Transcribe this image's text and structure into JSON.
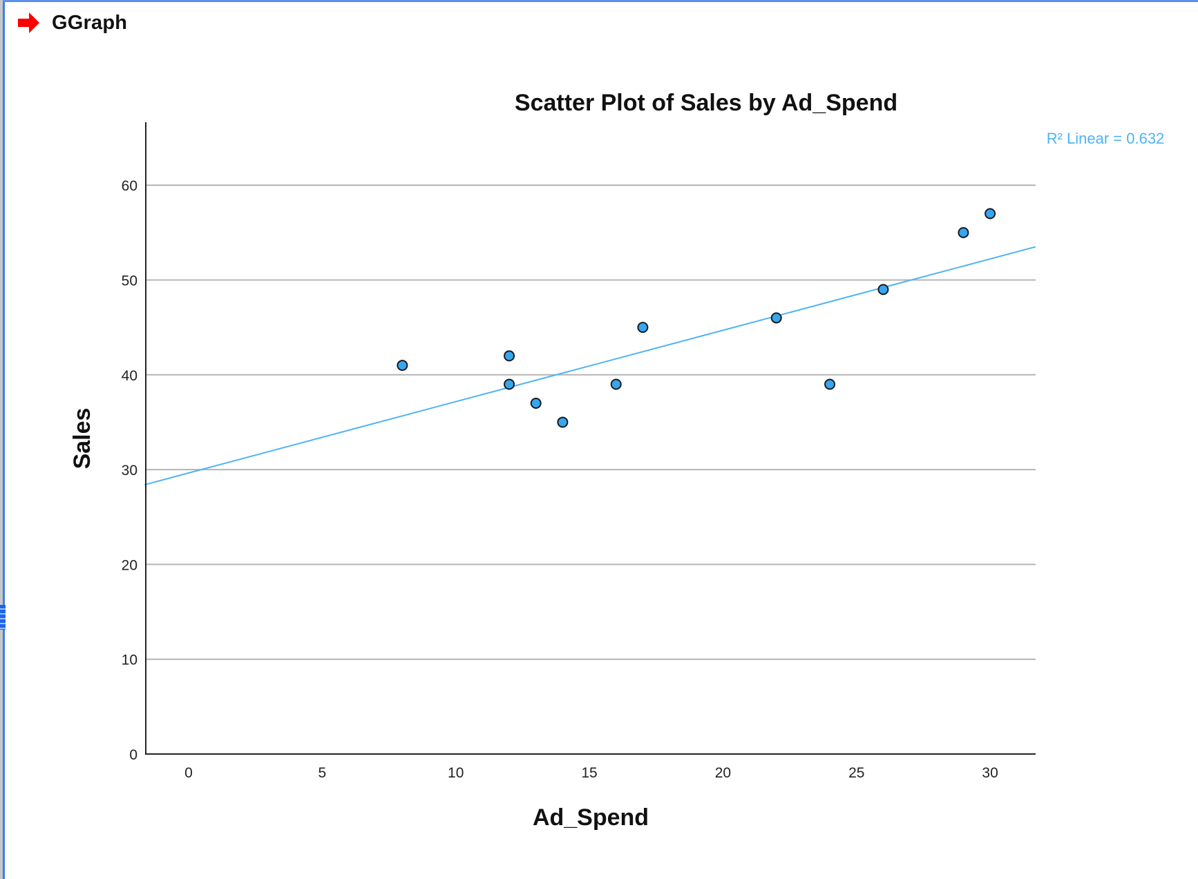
{
  "window": {
    "header_title": "GGraph",
    "header_icon": "red-arrow-right-icon"
  },
  "chart": {
    "title": "Scatter Plot of Sales by Ad_Spend",
    "xlabel": "Ad_Spend",
    "ylabel": "Sales",
    "fit_label": "R² Linear = 0.632",
    "x_ticks": [
      "0",
      "5",
      "10",
      "15",
      "20",
      "25",
      "30"
    ],
    "y_ticks": [
      "0",
      "10",
      "20",
      "30",
      "40",
      "50",
      "60"
    ]
  },
  "colors": {
    "point_fill": "#36a6f0",
    "point_stroke": "#1a1a1a",
    "fit_line": "#4db3f5",
    "gridline": "#b4b4b4",
    "axis": "#222222",
    "header_arrow": "#ff0000",
    "frame_border": "#3c7ef0"
  },
  "chart_data": {
    "type": "scatter",
    "title": "Scatter Plot of Sales by Ad_Spend",
    "xlabel": "Ad_Spend",
    "ylabel": "Sales",
    "xlim": [
      -1.6,
      31.7
    ],
    "ylim": [
      0,
      66
    ],
    "x_ticks": [
      0,
      5,
      10,
      15,
      20,
      25,
      30
    ],
    "y_ticks": [
      0,
      10,
      20,
      30,
      40,
      50,
      60
    ],
    "grid": {
      "horizontal": true,
      "vertical": false
    },
    "points": [
      {
        "x": 8,
        "y": 41
      },
      {
        "x": 12,
        "y": 42
      },
      {
        "x": 12,
        "y": 39
      },
      {
        "x": 13,
        "y": 37
      },
      {
        "x": 14,
        "y": 35
      },
      {
        "x": 16,
        "y": 39
      },
      {
        "x": 17,
        "y": 45
      },
      {
        "x": 22,
        "y": 46
      },
      {
        "x": 24,
        "y": 39
      },
      {
        "x": 26,
        "y": 49
      },
      {
        "x": 29,
        "y": 55
      },
      {
        "x": 30,
        "y": 57
      }
    ],
    "fit_line": {
      "type": "linear",
      "r_squared": 0.632,
      "label": "R² Linear = 0.632",
      "start": {
        "x": -1.6,
        "y": 28.4
      },
      "end": {
        "x": 31.7,
        "y": 53.5
      }
    },
    "legend": {
      "position": "top-right",
      "entries": [
        "R² Linear = 0.632"
      ]
    }
  }
}
